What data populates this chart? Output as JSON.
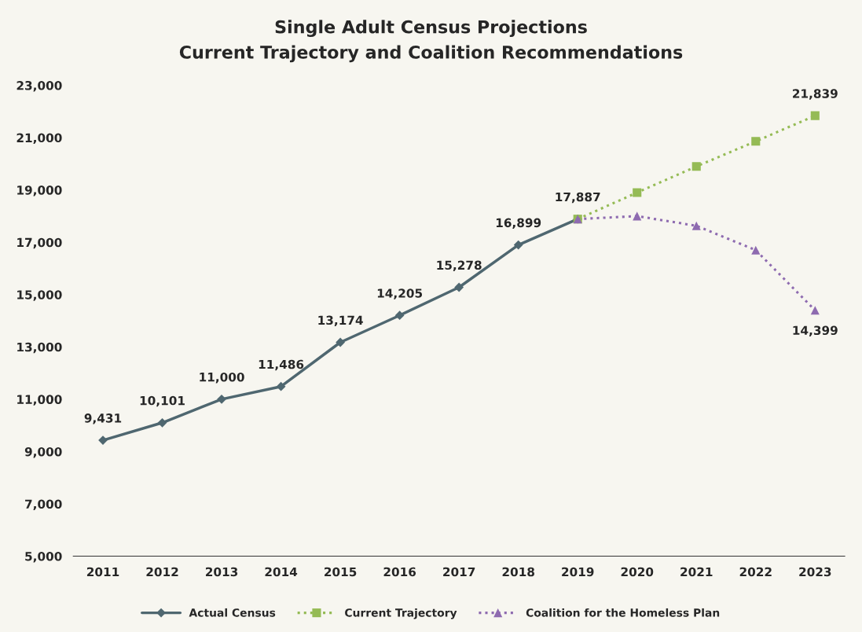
{
  "chart_data": {
    "type": "line",
    "title": "Single Adult Census Projections",
    "subtitle": "Current Trajectory and Coalition Recommendations",
    "categories": [
      "2011",
      "2012",
      "2013",
      "2014",
      "2015",
      "2016",
      "2017",
      "2018",
      "2019",
      "2020",
      "2021",
      "2022",
      "2023"
    ],
    "series": [
      {
        "name": "Actual Census",
        "color": "#4f6770",
        "marker": "diamond",
        "line_style": "solid",
        "values": [
          9431,
          10101,
          11000,
          11486,
          13174,
          14205,
          15278,
          16899,
          17887,
          null,
          null,
          null,
          null
        ],
        "value_labels": [
          "9,431",
          "10,101",
          "11,000",
          "11,486",
          "13,174",
          "14,205",
          "15,278",
          "16,899",
          "17,887",
          null,
          null,
          null,
          null
        ]
      },
      {
        "name": "Current Trajectory",
        "color": "#95bb55",
        "marker": "square",
        "line_style": "dotted",
        "values": [
          null,
          null,
          null,
          null,
          null,
          null,
          null,
          null,
          17887,
          18900,
          19900,
          20860,
          21839
        ],
        "value_labels": [
          null,
          null,
          null,
          null,
          null,
          null,
          null,
          null,
          null,
          null,
          null,
          null,
          "21,839"
        ]
      },
      {
        "name": "Coalition for the Homeless Plan",
        "color": "#8e6bb0",
        "marker": "triangle",
        "line_style": "dotted",
        "values": [
          null,
          null,
          null,
          null,
          null,
          null,
          null,
          null,
          17887,
          18000,
          17630,
          16700,
          14399
        ],
        "value_labels": [
          null,
          null,
          null,
          null,
          null,
          null,
          null,
          null,
          null,
          null,
          null,
          null,
          "14,399"
        ]
      }
    ],
    "ylim": [
      5000,
      23000
    ],
    "yticks": [
      {
        "value": 5000,
        "label": "5,000"
      },
      {
        "value": 7000,
        "label": "7,000"
      },
      {
        "value": 9000,
        "label": "9,000"
      },
      {
        "value": 11000,
        "label": "11,000"
      },
      {
        "value": 13000,
        "label": "13,000"
      },
      {
        "value": 15000,
        "label": "15,000"
      },
      {
        "value": 17000,
        "label": "17,000"
      },
      {
        "value": 19000,
        "label": "19,000"
      },
      {
        "value": 21000,
        "label": "21,000"
      },
      {
        "value": 23000,
        "label": "23,000"
      }
    ],
    "grid": false,
    "legend": "bottom"
  }
}
